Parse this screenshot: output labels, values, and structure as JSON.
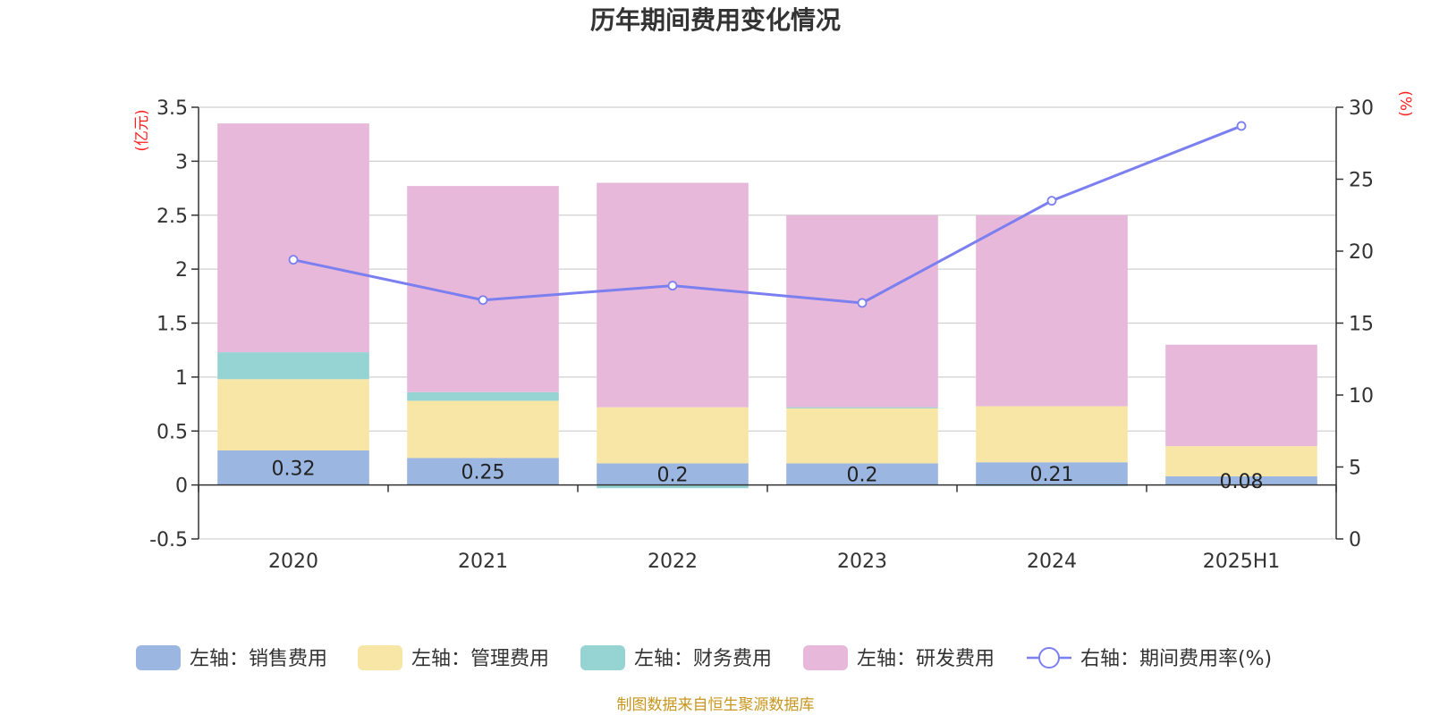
{
  "chart_data": {
    "type": "bar",
    "title": "历年期间费用变化情况",
    "categories": [
      "2020",
      "2021",
      "2022",
      "2023",
      "2024",
      "2025H1"
    ],
    "left_axis": {
      "unit": "(亿元)",
      "range": [
        -0.5,
        3.5
      ],
      "ticks": [
        "3.5",
        "3",
        "2.5",
        "2",
        "1.5",
        "1",
        "0.5",
        "0",
        "-0.5"
      ]
    },
    "right_axis": {
      "unit": "(%)",
      "range": [
        0,
        30
      ],
      "ticks": [
        "30",
        "25",
        "20",
        "15",
        "10",
        "5",
        "0"
      ]
    },
    "series": [
      {
        "name": "左轴：销售费用",
        "kind": "bar",
        "color": "#9bb6e1",
        "values": [
          0.32,
          0.25,
          0.2,
          0.2,
          0.21,
          0.08
        ],
        "labels": [
          "0.32",
          "0.25",
          "0.2",
          "0.2",
          "0.21",
          "0.08"
        ]
      },
      {
        "name": "左轴：管理费用",
        "kind": "bar",
        "color": "#f8e6a6",
        "values": [
          0.66,
          0.53,
          0.52,
          0.51,
          0.52,
          0.28
        ]
      },
      {
        "name": "左轴：财务费用",
        "kind": "bar",
        "color": "#96d4d4",
        "values": [
          0.25,
          0.08,
          -0.03,
          0.01,
          -0.01,
          0.0
        ]
      },
      {
        "name": "左轴：研发费用",
        "kind": "bar",
        "color": "#e7b8d9",
        "values": [
          2.12,
          1.91,
          2.08,
          1.78,
          1.77,
          0.94
        ]
      },
      {
        "name": "右轴：期间费用率(%)",
        "kind": "line",
        "color": "#7b7ff0",
        "values": [
          19.4,
          16.6,
          17.6,
          16.4,
          23.5,
          28.7
        ]
      }
    ],
    "grid": true,
    "legend_position": "bottom"
  },
  "source_note": "制图数据来自恒生聚源数据库"
}
